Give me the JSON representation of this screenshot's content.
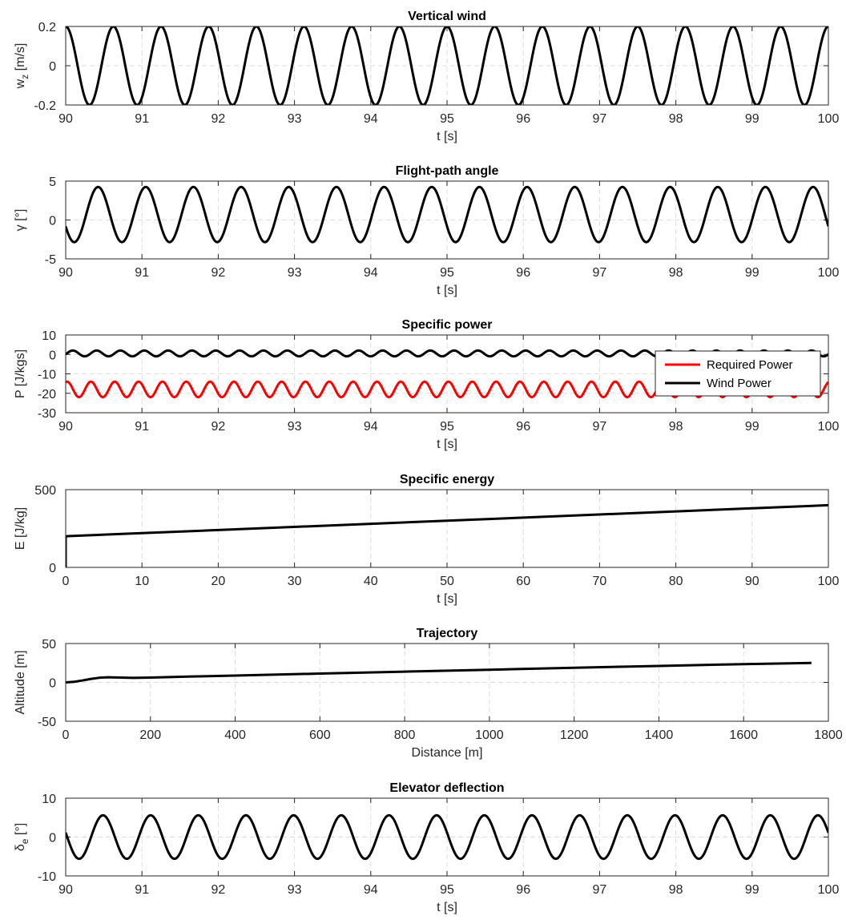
{
  "chart_data": [
    {
      "type": "line",
      "title": "Vertical wind",
      "xlabel": "t [s]",
      "ylabel": {
        "main": "w",
        "sub": "z",
        "rest": " [m/s]"
      },
      "xlim": [
        90,
        100
      ],
      "ylim": [
        -0.2,
        0.2
      ],
      "xticks": [
        "90",
        "91",
        "92",
        "93",
        "94",
        "95",
        "96",
        "97",
        "98",
        "99",
        "100"
      ],
      "yticks": [
        {
          "v": -0.2,
          "label": "-0.2"
        },
        {
          "v": 0,
          "label": "0"
        },
        {
          "v": 0.2,
          "label": "0.2"
        }
      ],
      "series": [
        {
          "color": "#000000",
          "func": {
            "kind": "sine",
            "x0": 90,
            "x1": 100,
            "offset": 0,
            "amp": 0.2,
            "period": 0.625,
            "phase": 1.5708
          }
        }
      ]
    },
    {
      "type": "line",
      "title": "Flight-path angle",
      "xlabel": "t [s]",
      "ylabel": {
        "main": "γ [°]"
      },
      "xlim": [
        90,
        100
      ],
      "ylim": [
        -5,
        5
      ],
      "xticks": [
        "90",
        "91",
        "92",
        "93",
        "94",
        "95",
        "96",
        "97",
        "98",
        "99",
        "100"
      ],
      "yticks": [
        {
          "v": -5,
          "label": "-5"
        },
        {
          "v": 0,
          "label": "0"
        },
        {
          "v": 5,
          "label": "5"
        }
      ],
      "series": [
        {
          "color": "#000000",
          "func": {
            "kind": "sine",
            "x0": 90,
            "x1": 100,
            "offset": 0.7,
            "amp": 3.55,
            "period": 0.625,
            "phase": -2.7
          }
        }
      ]
    },
    {
      "type": "line",
      "title": "Specific power",
      "xlabel": "t [s]",
      "ylabel": {
        "main": "P [J/kgs]"
      },
      "xlim": [
        90,
        100
      ],
      "ylim": [
        -30,
        10
      ],
      "xticks": [
        "90",
        "91",
        "92",
        "93",
        "94",
        "95",
        "96",
        "97",
        "98",
        "99",
        "100"
      ],
      "yticks": [
        {
          "v": -30,
          "label": "-30"
        },
        {
          "v": -20,
          "label": "-20"
        },
        {
          "v": -10,
          "label": "-10"
        },
        {
          "v": 0,
          "label": "0"
        },
        {
          "v": 10,
          "label": "10"
        }
      ],
      "legend": {
        "position": "right",
        "entries": [
          "Required Power",
          "Wind Power"
        ]
      },
      "series": [
        {
          "name": "Required Power",
          "color": "#ff0000",
          "func": {
            "kind": "sine",
            "x0": 90,
            "x1": 100,
            "offset": -18,
            "amp": 4,
            "period": 0.3125,
            "phase": 1.2
          }
        },
        {
          "name": "Wind Power",
          "color": "#000000",
          "func": {
            "kind": "sine",
            "x0": 90,
            "x1": 100,
            "offset": 0.5,
            "amp": 1.5,
            "period": 0.3125,
            "phase": -0.3
          }
        }
      ]
    },
    {
      "type": "line",
      "title": "Specific energy",
      "xlabel": "t [s]",
      "ylabel": {
        "main": "E [J/kg]"
      },
      "xlim": [
        0,
        100
      ],
      "ylim": [
        0,
        500
      ],
      "xticks": [
        "0",
        "10",
        "20",
        "30",
        "40",
        "50",
        "60",
        "70",
        "80",
        "90",
        "100"
      ],
      "yticks": [
        {
          "v": 0,
          "label": "0"
        },
        {
          "v": 500,
          "label": "500"
        }
      ],
      "series": [
        {
          "color": "#000000",
          "x": [
            0,
            0,
            0.3,
            100
          ],
          "y": [
            0,
            200,
            201,
            400
          ]
        }
      ]
    },
    {
      "type": "line",
      "title": "Trajectory",
      "xlabel": "Distance [m]",
      "ylabel": {
        "main": "Altitude [m]"
      },
      "xlim": [
        0,
        1800
      ],
      "ylim": [
        -50,
        50
      ],
      "xticks": [
        "0",
        "200",
        "400",
        "600",
        "800",
        "1000",
        "1200",
        "1400",
        "1600",
        "1800"
      ],
      "yticks": [
        {
          "v": -50,
          "label": "-50"
        },
        {
          "v": 0,
          "label": "0"
        },
        {
          "v": 50,
          "label": "50"
        }
      ],
      "series": [
        {
          "color": "#000000",
          "x": [
            0,
            20,
            40,
            60,
            80,
            100,
            130,
            160,
            200,
            300,
            400,
            600,
            800,
            1000,
            1200,
            1400,
            1600,
            1760
          ],
          "y": [
            0,
            0.8,
            2.5,
            4.5,
            6.0,
            6.6,
            6.2,
            5.8,
            6.2,
            7.6,
            8.8,
            11.3,
            13.8,
            16.3,
            18.8,
            21.2,
            23.5,
            25.0
          ]
        }
      ]
    },
    {
      "type": "line",
      "title": "Elevator deflection",
      "xlabel": "t [s]",
      "ylabel": {
        "main": "δ",
        "sub": "e",
        "rest": " [°]"
      },
      "xlim": [
        90,
        100
      ],
      "ylim": [
        -10,
        10
      ],
      "xticks": [
        "90",
        "91",
        "92",
        "93",
        "94",
        "95",
        "96",
        "97",
        "98",
        "99",
        "100"
      ],
      "yticks": [
        {
          "v": -10,
          "label": "-10"
        },
        {
          "v": 0,
          "label": "0"
        },
        {
          "v": 10,
          "label": "10"
        }
      ],
      "series": [
        {
          "color": "#000000",
          "func": {
            "kind": "sine",
            "x0": 90,
            "x1": 100,
            "offset": 0,
            "amp": 5.6,
            "period": 0.625,
            "phase": 2.94
          }
        }
      ]
    }
  ]
}
